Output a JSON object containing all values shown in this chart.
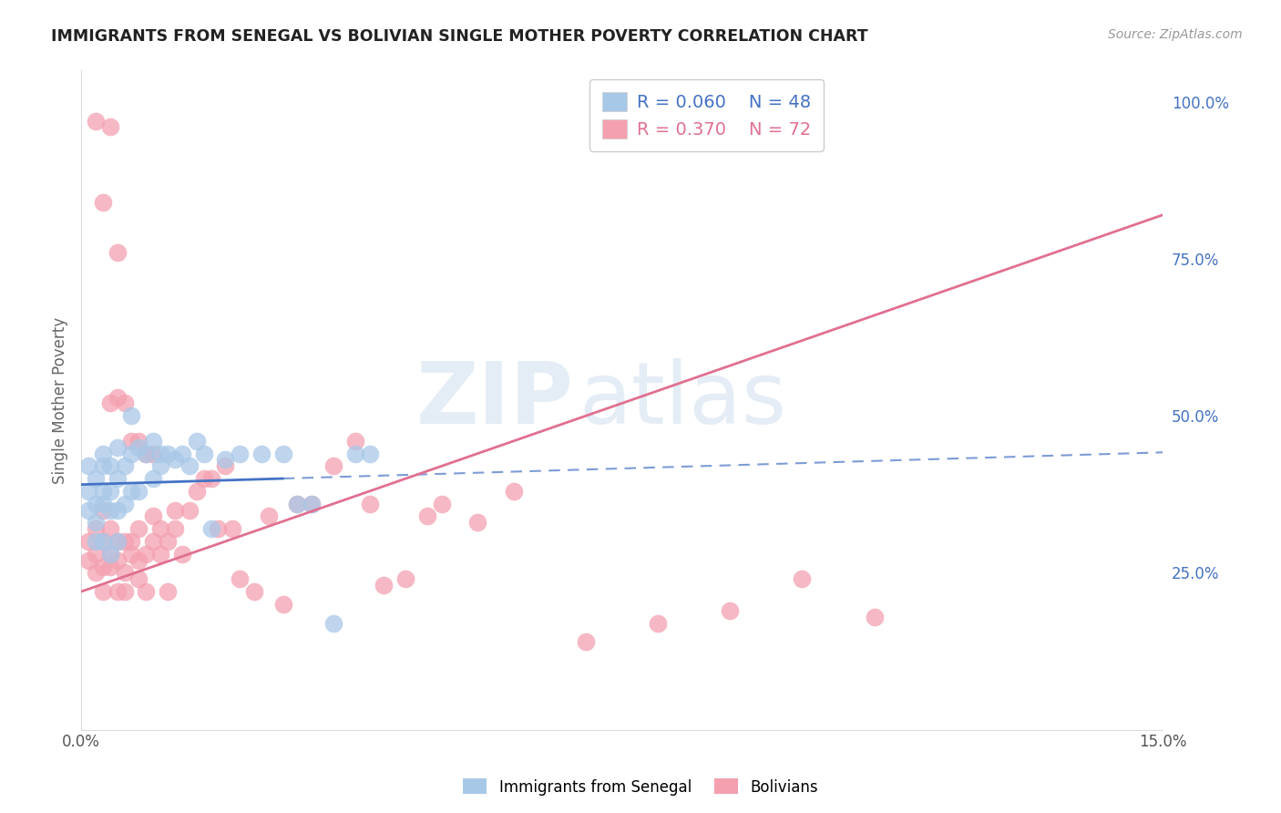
{
  "title": "IMMIGRANTS FROM SENEGAL VS BOLIVIAN SINGLE MOTHER POVERTY CORRELATION CHART",
  "source": "Source: ZipAtlas.com",
  "ylabel": "Single Mother Poverty",
  "xlim": [
    0.0,
    0.15
  ],
  "ylim": [
    0.0,
    1.05
  ],
  "xticks": [
    0.0,
    0.03,
    0.06,
    0.09,
    0.12,
    0.15
  ],
  "xticklabels": [
    "0.0%",
    "",
    "",
    "",
    "",
    "15.0%"
  ],
  "yticks_right": [
    0.25,
    0.5,
    0.75,
    1.0
  ],
  "yticklabels_right": [
    "25.0%",
    "50.0%",
    "75.0%",
    "100.0%"
  ],
  "grid_color": "#cccccc",
  "background_color": "#ffffff",
  "watermark_zip": "ZIP",
  "watermark_atlas": "atlas",
  "legend_r1": "R = 0.060",
  "legend_n1": "N = 48",
  "legend_r2": "R = 0.370",
  "legend_n2": "N = 72",
  "color_senegal": "#a8c8e8",
  "color_bolivian": "#f4a0b0",
  "color_senegal_line": "#4472c4",
  "color_bolivian_line": "#e07090",
  "label_senegal": "Immigrants from Senegal",
  "label_bolivian": "Bolivians",
  "senegal_x": [
    0.001,
    0.001,
    0.001,
    0.002,
    0.002,
    0.002,
    0.002,
    0.003,
    0.003,
    0.003,
    0.003,
    0.003,
    0.004,
    0.004,
    0.004,
    0.004,
    0.005,
    0.005,
    0.005,
    0.005,
    0.006,
    0.006,
    0.007,
    0.007,
    0.007,
    0.008,
    0.008,
    0.009,
    0.01,
    0.01,
    0.011,
    0.011,
    0.012,
    0.013,
    0.014,
    0.015,
    0.016,
    0.017,
    0.018,
    0.02,
    0.022,
    0.025,
    0.028,
    0.03,
    0.032,
    0.035,
    0.038,
    0.04
  ],
  "senegal_y": [
    0.38,
    0.42,
    0.35,
    0.36,
    0.4,
    0.33,
    0.3,
    0.38,
    0.42,
    0.36,
    0.3,
    0.44,
    0.38,
    0.42,
    0.35,
    0.28,
    0.4,
    0.35,
    0.3,
    0.45,
    0.42,
    0.36,
    0.44,
    0.38,
    0.5,
    0.45,
    0.38,
    0.44,
    0.46,
    0.4,
    0.44,
    0.42,
    0.44,
    0.43,
    0.44,
    0.42,
    0.46,
    0.44,
    0.32,
    0.43,
    0.44,
    0.44,
    0.44,
    0.36,
    0.36,
    0.17,
    0.44,
    0.44
  ],
  "bolivian_x": [
    0.001,
    0.001,
    0.002,
    0.002,
    0.002,
    0.003,
    0.003,
    0.003,
    0.003,
    0.004,
    0.004,
    0.004,
    0.005,
    0.005,
    0.005,
    0.006,
    0.006,
    0.006,
    0.007,
    0.007,
    0.008,
    0.008,
    0.008,
    0.009,
    0.009,
    0.01,
    0.01,
    0.011,
    0.011,
    0.012,
    0.013,
    0.013,
    0.014,
    0.015,
    0.016,
    0.017,
    0.018,
    0.019,
    0.02,
    0.021,
    0.022,
    0.024,
    0.026,
    0.028,
    0.03,
    0.032,
    0.035,
    0.038,
    0.04,
    0.042,
    0.045,
    0.048,
    0.05,
    0.055,
    0.06,
    0.07,
    0.08,
    0.09,
    0.1,
    0.11,
    0.002,
    0.003,
    0.004,
    0.005,
    0.005,
    0.004,
    0.006,
    0.007,
    0.008,
    0.009,
    0.01,
    0.012
  ],
  "bolivian_y": [
    0.3,
    0.27,
    0.28,
    0.32,
    0.25,
    0.3,
    0.26,
    0.22,
    0.35,
    0.28,
    0.32,
    0.26,
    0.3,
    0.27,
    0.22,
    0.3,
    0.25,
    0.22,
    0.28,
    0.3,
    0.27,
    0.32,
    0.24,
    0.28,
    0.22,
    0.3,
    0.34,
    0.28,
    0.32,
    0.3,
    0.35,
    0.32,
    0.28,
    0.35,
    0.38,
    0.4,
    0.4,
    0.32,
    0.42,
    0.32,
    0.24,
    0.22,
    0.34,
    0.2,
    0.36,
    0.36,
    0.42,
    0.46,
    0.36,
    0.23,
    0.24,
    0.34,
    0.36,
    0.33,
    0.38,
    0.14,
    0.17,
    0.19,
    0.24,
    0.18,
    0.97,
    0.84,
    0.96,
    0.53,
    0.76,
    0.52,
    0.52,
    0.46,
    0.46,
    0.44,
    0.44,
    0.22
  ]
}
